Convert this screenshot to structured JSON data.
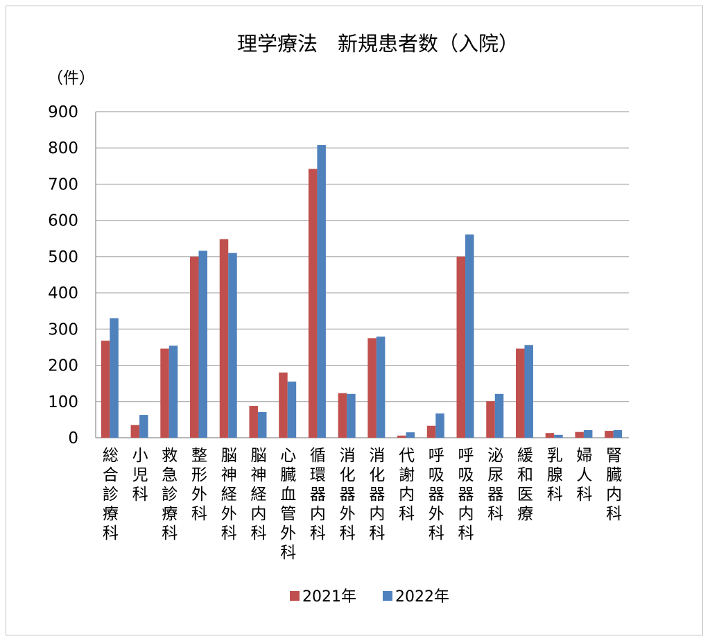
{
  "chart_data": {
    "type": "bar",
    "title": "理学療法　新規患者数（入院）",
    "ylabel": "（件）",
    "xlabel": "",
    "ylim": [
      0,
      900
    ],
    "yticks": [
      0,
      100,
      200,
      300,
      400,
      500,
      600,
      700,
      800,
      900
    ],
    "grid": true,
    "legend": "bottom",
    "categories": [
      "総合診療科",
      "小児科",
      "救急診療科",
      "整形外科",
      "脳神経外科",
      "脳神経内科",
      "心臓血管外科",
      "循環器内科",
      "消化器外科",
      "消化器内科",
      "代謝内科",
      "呼吸器外科",
      "呼吸器内科",
      "泌尿器科",
      "緩和医療",
      "乳腺科",
      "婦人科",
      "腎臓内科"
    ],
    "series": [
      {
        "name": "2021年",
        "color": "#c0504d",
        "values": [
          268,
          35,
          246,
          500,
          548,
          88,
          180,
          742,
          123,
          275,
          6,
          33,
          500,
          101,
          246,
          13,
          16,
          19
        ]
      },
      {
        "name": "2022年",
        "color": "#4f81bd",
        "values": [
          330,
          63,
          254,
          516,
          510,
          71,
          155,
          808,
          121,
          279,
          15,
          67,
          561,
          121,
          256,
          8,
          21,
          21
        ]
      }
    ]
  }
}
